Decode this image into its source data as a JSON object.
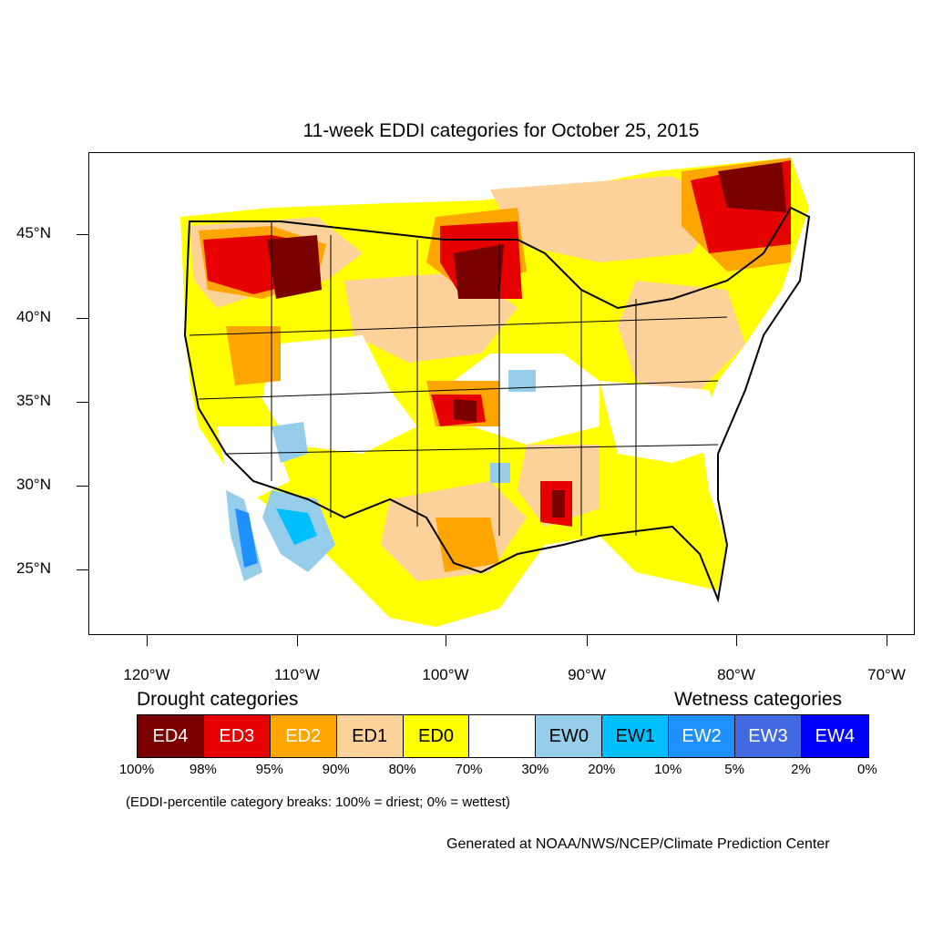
{
  "title": "11-week EDDI categories for October 25, 2015",
  "y_ticks": [
    "45°N",
    "40°N",
    "35°N",
    "30°N",
    "25°N"
  ],
  "x_ticks": [
    "120°W",
    "110°W",
    "100°W",
    "90°W",
    "80°W",
    "70°W"
  ],
  "legend": {
    "drought_heading": "Drought categories",
    "wetness_heading": "Wetness categories",
    "categories": [
      {
        "label": "ED4",
        "color": "#7a0000",
        "text_color": "#ffffff"
      },
      {
        "label": "ED3",
        "color": "#e60000",
        "text_color": "#ffffff"
      },
      {
        "label": "ED2",
        "color": "#ffa500",
        "text_color": "#ffffff"
      },
      {
        "label": "ED1",
        "color": "#fcd19a",
        "text_color": "#000000"
      },
      {
        "label": "ED0",
        "color": "#ffff00",
        "text_color": "#000000"
      },
      {
        "label": "",
        "color": "#ffffff",
        "text_color": "#000000"
      },
      {
        "label": "EW0",
        "color": "#96cdeb",
        "text_color": "#000000"
      },
      {
        "label": "EW1",
        "color": "#00bfff",
        "text_color": "#000000"
      },
      {
        "label": "EW2",
        "color": "#1e90ff",
        "text_color": "#ffffff"
      },
      {
        "label": "EW3",
        "color": "#4169e1",
        "text_color": "#ffffff"
      },
      {
        "label": "EW4",
        "color": "#0000ff",
        "text_color": "#ffffff"
      }
    ],
    "percent_breaks": [
      "100%",
      "98%",
      "95%",
      "90%",
      "80%",
      "70%",
      "30%",
      "20%",
      "10%",
      "5%",
      "2%",
      "0%"
    ]
  },
  "note": "(EDDI-percentile category breaks: 100% = driest; 0% = wettest)",
  "credit": "Generated at NOAA/NWS/NCEP/Climate Prediction Center"
}
